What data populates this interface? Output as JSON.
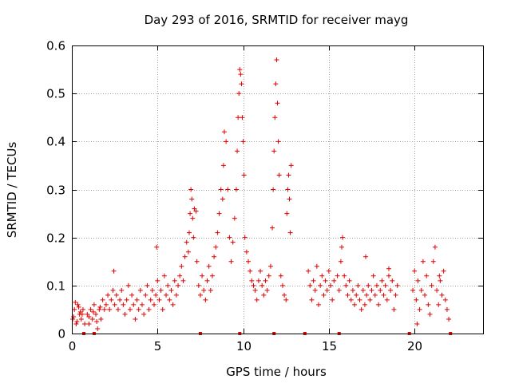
{
  "chart_data": {
    "type": "scatter",
    "title": "Day 293 of 2016, SRMTID for receiver mayg",
    "xlabel": "GPS time / hours",
    "ylabel": "SRMTID / TECUs",
    "xlim": [
      0,
      24
    ],
    "ylim": [
      0,
      0.6
    ],
    "xticks": [
      {
        "value": 0,
        "label": "0"
      },
      {
        "value": 5,
        "label": "5"
      },
      {
        "value": 10,
        "label": "10"
      },
      {
        "value": 15,
        "label": "15"
      },
      {
        "value": 20,
        "label": "20"
      }
    ],
    "yticks": [
      {
        "value": 0,
        "label": "0"
      },
      {
        "value": 0.1,
        "label": "0.1"
      },
      {
        "value": 0.2,
        "label": "0.2"
      },
      {
        "value": 0.3,
        "label": "0.3"
      },
      {
        "value": 0.4,
        "label": "0.4"
      },
      {
        "value": 0.5,
        "label": "0.5"
      },
      {
        "value": 0.6,
        "label": "0.6"
      }
    ],
    "grid": true,
    "marker": "+",
    "marker_color": "#e00000",
    "series": [
      {
        "name": "SRMTID",
        "points": [
          [
            0.05,
            0.03
          ],
          [
            0.15,
            0.05
          ],
          [
            0.25,
            0.02
          ],
          [
            0.35,
            0.06
          ],
          [
            0.45,
            0.04
          ],
          [
            0.55,
            0.03
          ],
          [
            0.65,
            0.05
          ],
          [
            0.75,
            0.02
          ],
          [
            0.2,
            0.065
          ],
          [
            0.4,
            0.055
          ],
          [
            0.5,
            0.045
          ],
          [
            0.1,
            0.035
          ],
          [
            0.3,
            0.025
          ],
          [
            0.6,
            0.04
          ],
          [
            0.9,
            0.04
          ],
          [
            1.0,
            0.02
          ],
          [
            1.1,
            0.05
          ],
          [
            1.2,
            0.03
          ],
          [
            1.3,
            0.06
          ],
          [
            1.4,
            0.04
          ],
          [
            1.5,
            0.01
          ],
          [
            1.6,
            0.05
          ],
          [
            1.7,
            0.03
          ],
          [
            1.8,
            0.07
          ],
          [
            1.9,
            0.05
          ],
          [
            1.0,
            0.035
          ],
          [
            1.25,
            0.045
          ],
          [
            1.45,
            0.025
          ],
          [
            1.65,
            0.055
          ],
          [
            2.0,
            0.06
          ],
          [
            2.1,
            0.08
          ],
          [
            2.2,
            0.05
          ],
          [
            2.3,
            0.07
          ],
          [
            2.4,
            0.09
          ],
          [
            2.5,
            0.06
          ],
          [
            2.45,
            0.13
          ],
          [
            2.6,
            0.08
          ],
          [
            2.7,
            0.05
          ],
          [
            2.8,
            0.07
          ],
          [
            2.9,
            0.09
          ],
          [
            3.0,
            0.06
          ],
          [
            3.1,
            0.04
          ],
          [
            3.2,
            0.07
          ],
          [
            3.3,
            0.1
          ],
          [
            3.4,
            0.05
          ],
          [
            3.5,
            0.08
          ],
          [
            3.6,
            0.06
          ],
          [
            3.7,
            0.03
          ],
          [
            3.8,
            0.07
          ],
          [
            3.9,
            0.05
          ],
          [
            4.0,
            0.09
          ],
          [
            4.1,
            0.06
          ],
          [
            4.2,
            0.04
          ],
          [
            4.3,
            0.08
          ],
          [
            4.4,
            0.1
          ],
          [
            4.5,
            0.05
          ],
          [
            4.6,
            0.07
          ],
          [
            4.7,
            0.09
          ],
          [
            4.8,
            0.06
          ],
          [
            4.9,
            0.08
          ],
          [
            5.0,
            0.11
          ],
          [
            5.1,
            0.07
          ],
          [
            5.2,
            0.09
          ],
          [
            4.95,
            0.18
          ],
          [
            5.3,
            0.05
          ],
          [
            5.4,
            0.12
          ],
          [
            5.5,
            0.08
          ],
          [
            5.6,
            0.1
          ],
          [
            5.7,
            0.07
          ],
          [
            5.8,
            0.09
          ],
          [
            5.9,
            0.06
          ],
          [
            6.0,
            0.11
          ],
          [
            6.1,
            0.08
          ],
          [
            6.2,
            0.1
          ],
          [
            6.3,
            0.12
          ],
          [
            6.4,
            0.14
          ],
          [
            6.5,
            0.11
          ],
          [
            6.6,
            0.16
          ],
          [
            6.7,
            0.19
          ],
          [
            6.8,
            0.17
          ],
          [
            6.85,
            0.21
          ],
          [
            6.9,
            0.25
          ],
          [
            6.95,
            0.3
          ],
          [
            7.0,
            0.28
          ],
          [
            7.05,
            0.24
          ],
          [
            7.1,
            0.2
          ],
          [
            7.15,
            0.26
          ],
          [
            7.25,
            0.255
          ],
          [
            7.3,
            0.15
          ],
          [
            7.4,
            0.1
          ],
          [
            7.5,
            0.08
          ],
          [
            7.6,
            0.12
          ],
          [
            7.7,
            0.09
          ],
          [
            7.8,
            0.07
          ],
          [
            7.9,
            0.11
          ],
          [
            8.0,
            0.14
          ],
          [
            8.1,
            0.09
          ],
          [
            8.2,
            0.12
          ],
          [
            8.3,
            0.16
          ],
          [
            8.4,
            0.18
          ],
          [
            8.5,
            0.21
          ],
          [
            8.6,
            0.25
          ],
          [
            8.7,
            0.3
          ],
          [
            8.8,
            0.28
          ],
          [
            8.85,
            0.35
          ],
          [
            8.9,
            0.42
          ],
          [
            9.0,
            0.4
          ],
          [
            9.1,
            0.3
          ],
          [
            9.2,
            0.2
          ],
          [
            9.3,
            0.15
          ],
          [
            9.4,
            0.19
          ],
          [
            9.5,
            0.24
          ],
          [
            9.6,
            0.3
          ],
          [
            9.65,
            0.38
          ],
          [
            9.7,
            0.45
          ],
          [
            9.75,
            0.5
          ],
          [
            9.8,
            0.55
          ],
          [
            9.85,
            0.54
          ],
          [
            9.9,
            0.52
          ],
          [
            9.95,
            0.45
          ],
          [
            10.0,
            0.4
          ],
          [
            10.05,
            0.33
          ],
          [
            10.1,
            0.2
          ],
          [
            10.2,
            0.17
          ],
          [
            10.3,
            0.15
          ],
          [
            10.4,
            0.13
          ],
          [
            10.5,
            0.11
          ],
          [
            10.6,
            0.1
          ],
          [
            10.7,
            0.09
          ],
          [
            10.8,
            0.07
          ],
          [
            10.9,
            0.11
          ],
          [
            11.0,
            0.13
          ],
          [
            11.1,
            0.1
          ],
          [
            11.2,
            0.08
          ],
          [
            11.3,
            0.11
          ],
          [
            11.4,
            0.09
          ],
          [
            11.5,
            0.12
          ],
          [
            11.6,
            0.14
          ],
          [
            11.7,
            0.22
          ],
          [
            11.75,
            0.3
          ],
          [
            11.8,
            0.38
          ],
          [
            11.85,
            0.45
          ],
          [
            11.9,
            0.52
          ],
          [
            11.95,
            0.57
          ],
          [
            12.0,
            0.48
          ],
          [
            12.05,
            0.4
          ],
          [
            12.1,
            0.33
          ],
          [
            12.2,
            0.12
          ],
          [
            12.3,
            0.1
          ],
          [
            12.4,
            0.08
          ],
          [
            12.5,
            0.07
          ],
          [
            12.55,
            0.25
          ],
          [
            12.6,
            0.3
          ],
          [
            12.65,
            0.33
          ],
          [
            12.7,
            0.28
          ],
          [
            12.75,
            0.21
          ],
          [
            12.8,
            0.35
          ],
          [
            13.8,
            0.13
          ],
          [
            13.9,
            0.1
          ],
          [
            14.0,
            0.07
          ],
          [
            14.1,
            0.11
          ],
          [
            14.2,
            0.09
          ],
          [
            14.3,
            0.14
          ],
          [
            14.4,
            0.06
          ],
          [
            14.5,
            0.1
          ],
          [
            14.6,
            0.12
          ],
          [
            14.7,
            0.08
          ],
          [
            14.8,
            0.11
          ],
          [
            14.9,
            0.09
          ],
          [
            15.0,
            0.13
          ],
          [
            15.1,
            0.1
          ],
          [
            15.2,
            0.07
          ],
          [
            15.3,
            0.11
          ],
          [
            15.5,
            0.12
          ],
          [
            15.6,
            0.09
          ],
          [
            15.7,
            0.15
          ],
          [
            15.75,
            0.18
          ],
          [
            15.8,
            0.2
          ],
          [
            15.9,
            0.12
          ],
          [
            16.0,
            0.1
          ],
          [
            16.1,
            0.08
          ],
          [
            16.2,
            0.11
          ],
          [
            16.3,
            0.07
          ],
          [
            16.4,
            0.09
          ],
          [
            16.5,
            0.06
          ],
          [
            16.6,
            0.08
          ],
          [
            16.7,
            0.1
          ],
          [
            16.8,
            0.07
          ],
          [
            16.9,
            0.05
          ],
          [
            17.0,
            0.09
          ],
          [
            17.1,
            0.06
          ],
          [
            17.2,
            0.08
          ],
          [
            17.3,
            0.1
          ],
          [
            17.4,
            0.07
          ],
          [
            17.5,
            0.09
          ],
          [
            17.6,
            0.12
          ],
          [
            17.7,
            0.08
          ],
          [
            17.8,
            0.1
          ],
          [
            17.9,
            0.06
          ],
          [
            18.0,
            0.09
          ],
          [
            18.1,
            0.11
          ],
          [
            18.2,
            0.08
          ],
          [
            18.3,
            0.1
          ],
          [
            18.4,
            0.07
          ],
          [
            18.5,
            0.12
          ],
          [
            18.6,
            0.09
          ],
          [
            18.7,
            0.11
          ],
          [
            18.8,
            0.05
          ],
          [
            18.9,
            0.08
          ],
          [
            19.0,
            0.1
          ],
          [
            17.15,
            0.16
          ],
          [
            18.5,
            0.135
          ],
          [
            19.9,
            0.09
          ],
          [
            20.0,
            0.13
          ],
          [
            20.1,
            0.07
          ],
          [
            20.2,
            0.11
          ],
          [
            20.3,
            0.05
          ],
          [
            20.4,
            0.09
          ],
          [
            20.5,
            0.15
          ],
          [
            20.6,
            0.08
          ],
          [
            20.7,
            0.12
          ],
          [
            20.8,
            0.06
          ],
          [
            20.9,
            0.04
          ],
          [
            21.0,
            0.1
          ],
          [
            21.1,
            0.15
          ],
          [
            21.2,
            0.18
          ],
          [
            21.3,
            0.09
          ],
          [
            21.4,
            0.06
          ],
          [
            21.5,
            0.11
          ],
          [
            21.6,
            0.08
          ],
          [
            21.7,
            0.13
          ],
          [
            21.8,
            0.07
          ],
          [
            21.9,
            0.05
          ],
          [
            22.0,
            0.03
          ],
          [
            20.15,
            0.02
          ],
          [
            21.45,
            0.12
          ]
        ]
      }
    ],
    "baseline_marker_hours": [
      0.7,
      1.3,
      7.5,
      9.8,
      11.8,
      13.6,
      15.6,
      19.7,
      22.1
    ]
  }
}
